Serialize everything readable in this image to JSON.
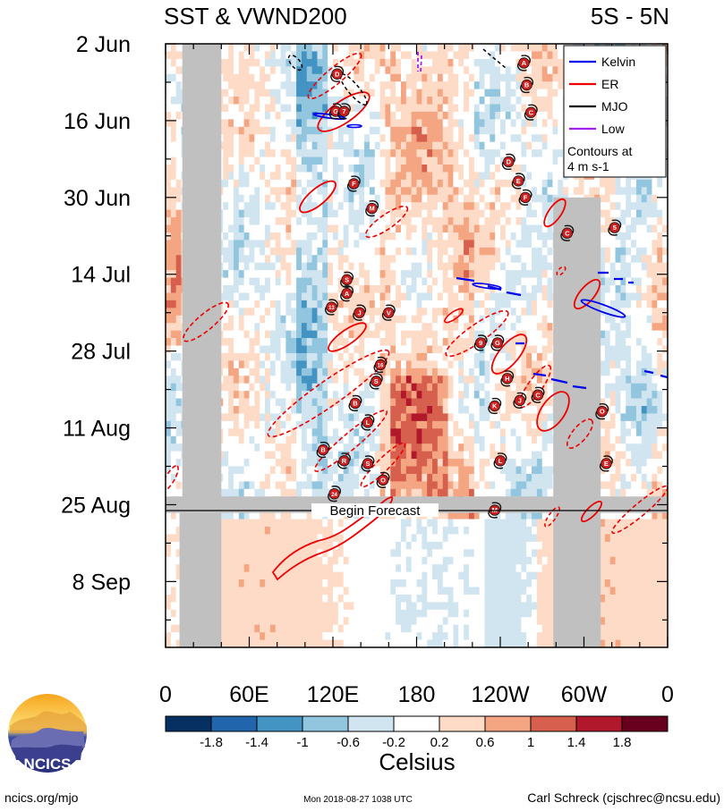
{
  "chart_data": {
    "type": "heatmap",
    "title": "SST & VWND200",
    "region": "5S - 5N",
    "y_tick_labels": [
      "2 Jun",
      "16 Jun",
      "30 Jun",
      "14 Jul",
      "28 Jul",
      "11 Aug",
      "25 Aug",
      "8 Sep"
    ],
    "y_tick_days_since_2jun": [
      0,
      14,
      28,
      42,
      56,
      70,
      84,
      98
    ],
    "y_range_days": [
      0,
      110
    ],
    "x_tick_labels": [
      "0",
      "60E",
      "120E",
      "180",
      "120W",
      "60W",
      "0"
    ],
    "x_tick_lon": [
      0,
      60,
      120,
      180,
      240,
      300,
      360
    ],
    "x_range_lon": [
      0,
      360
    ],
    "forecast_start_day": 85.5,
    "forecast_label": "Begin Forecast",
    "legend": {
      "entries": [
        {
          "name": "Kelvin",
          "color": "#0000ee"
        },
        {
          "name": "ER",
          "color": "#ee0000"
        },
        {
          "name": "MJO",
          "color": "#000000"
        },
        {
          "name": "Low",
          "color": "#a020f0"
        }
      ],
      "note_lines": [
        "Contours at",
        "4 m s-1"
      ],
      "placement": "top-right"
    },
    "colorbar": {
      "tick_labels": [
        "-1.8",
        "-1.4",
        "-1",
        "-0.6",
        "-0.2",
        "0.2",
        "0.6",
        "1",
        "1.4",
        "1.8"
      ],
      "colors": [
        "#053061",
        "#2166ac",
        "#4393c3",
        "#92c5de",
        "#d1e5f0",
        "#ffffff",
        "#fddbc7",
        "#f4a582",
        "#d6604d",
        "#b2182b",
        "#67001f"
      ],
      "label": "Celsius"
    },
    "land_masks": [
      {
        "lon_range": [
          12,
          40
        ],
        "day_range": [
          0,
          84
        ]
      },
      {
        "lon_range": [
          10,
          40
        ],
        "day_range": [
          85.5,
          110
        ]
      },
      {
        "lon_range": [
          278,
          312
        ],
        "day_range": [
          28,
          110
        ]
      },
      {
        "lon_range": [
          0,
          360
        ],
        "day_range": [
          82.5,
          85.5
        ]
      }
    ],
    "storms": [
      {
        "label": "A",
        "lon": 257,
        "day": 3.5
      },
      {
        "label": "B",
        "lon": 259,
        "day": 7.5
      },
      {
        "label": "C",
        "lon": 262,
        "day": 12.5
      },
      {
        "label": "D",
        "lon": 123,
        "day": 5.5
      },
      {
        "label": "G",
        "lon": 122,
        "day": 12.3
      },
      {
        "label": "7",
        "lon": 128,
        "day": 12.3
      },
      {
        "label": "D",
        "lon": 246,
        "day": 21.5
      },
      {
        "label": "E",
        "lon": 253,
        "day": 25.0
      },
      {
        "label": "F",
        "lon": 258,
        "day": 28.0
      },
      {
        "label": "C",
        "lon": 288,
        "day": 34.5
      },
      {
        "label": "5",
        "lon": 322,
        "day": 33.5
      },
      {
        "label": "F",
        "lon": 135,
        "day": 25.5
      },
      {
        "label": "M",
        "lon": 148,
        "day": 30.0
      },
      {
        "label": "S",
        "lon": 130,
        "day": 43.0
      },
      {
        "label": "A",
        "lon": 130,
        "day": 45.5
      },
      {
        "label": "13",
        "lon": 119,
        "day": 48.0
      },
      {
        "label": "J",
        "lon": 139,
        "day": 49.0
      },
      {
        "label": "V",
        "lon": 160,
        "day": 49.0
      },
      {
        "label": "9",
        "lon": 226,
        "day": 54.5
      },
      {
        "label": "G",
        "lon": 238,
        "day": 54.5
      },
      {
        "label": "H",
        "lon": 245,
        "day": 61.0
      },
      {
        "label": "16",
        "lon": 154,
        "day": 58.5
      },
      {
        "label": "S",
        "lon": 151,
        "day": 61.5
      },
      {
        "label": "B",
        "lon": 136,
        "day": 65.5
      },
      {
        "label": "J",
        "lon": 254,
        "day": 65.0
      },
      {
        "label": "C",
        "lon": 267,
        "day": 64.0
      },
      {
        "label": "K",
        "lon": 236,
        "day": 66.0
      },
      {
        "label": "O",
        "lon": 313,
        "day": 67.0
      },
      {
        "label": "L",
        "lon": 145,
        "day": 69.0
      },
      {
        "label": "B",
        "lon": 113,
        "day": 74.0
      },
      {
        "label": "R",
        "lon": 128,
        "day": 76.0
      },
      {
        "label": "S",
        "lon": 145,
        "day": 76.5
      },
      {
        "label": "L",
        "lon": 240,
        "day": 76.0
      },
      {
        "label": "E",
        "lon": 316,
        "day": 76.5
      },
      {
        "label": "O",
        "lon": 156,
        "day": 79.5
      },
      {
        "label": "24",
        "lon": 121,
        "day": 82.0
      },
      {
        "label": "M",
        "lon": 236,
        "day": 85.0
      }
    ]
  },
  "footer": {
    "logo_text": "NCICS",
    "left": "ncics.org/mjo",
    "center": "Mon 2018-08-27 1038 UTC",
    "right": "Carl Schreck (cjschrec@ncsu.edu)"
  }
}
